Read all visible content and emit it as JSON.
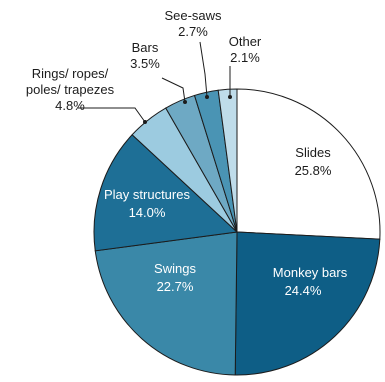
{
  "chart_data": {
    "type": "pie",
    "start_angle_deg": 0,
    "direction": "clockwise",
    "slices": [
      {
        "name": "Slides",
        "value": 25.8,
        "label": "25.8%",
        "color": "#ffffff"
      },
      {
        "name": "Monkey bars",
        "value": 24.4,
        "label": "24.4%",
        "color": "#0e5e86"
      },
      {
        "name": "Swings",
        "value": 22.7,
        "label": "22.7%",
        "color": "#3a88a8"
      },
      {
        "name": "Play structures",
        "value": 14.0,
        "label": "14.0%",
        "color": "#1e6f96"
      },
      {
        "name": "Rings/ ropes/ poles/ trapezes",
        "value": 4.8,
        "label": "4.8%",
        "color": "#9ccbe0"
      },
      {
        "name": "Bars",
        "value": 3.5,
        "label": "3.5%",
        "color": "#6ea9c4"
      },
      {
        "name": "See-saws",
        "value": 2.7,
        "label": "2.7%",
        "color": "#4a94b4"
      },
      {
        "name": "Other",
        "value": 2.1,
        "label": "2.1%",
        "color": "#bfdcea"
      }
    ],
    "labels": {
      "slides": {
        "name": "Slides",
        "value": "25.8%"
      },
      "monkey_bars": {
        "name": "Monkey bars",
        "value": "24.4%"
      },
      "swings": {
        "name": "Swings",
        "value": "22.7%"
      },
      "play_structures": {
        "name": "Play structures",
        "value": "14.0%"
      },
      "rings": {
        "line1": "Rings/ ropes/",
        "line2": "poles/ trapezes",
        "value": "4.8%"
      },
      "bars": {
        "name": "Bars",
        "value": "3.5%"
      },
      "see_saws": {
        "name": "See-saws",
        "value": "2.7%"
      },
      "other": {
        "name": "Other",
        "value": "2.1%"
      }
    }
  }
}
